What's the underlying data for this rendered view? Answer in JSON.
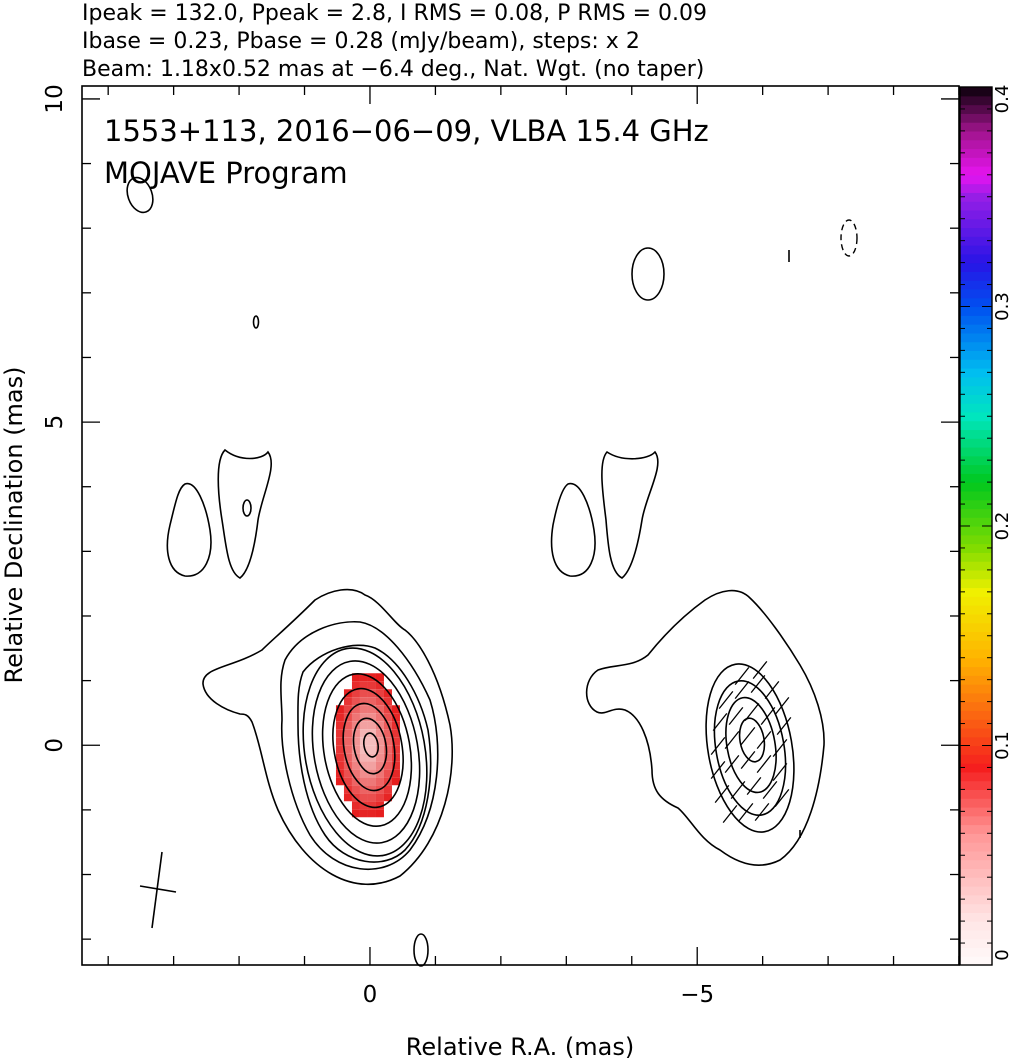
{
  "header": {
    "line1": "Ipeak = 132.0, Ppeak = 2.8, I RMS = 0.08, P RMS = 0.09",
    "line2": "Ibase = 0.23, Pbase = 0.28 (mJy/beam), steps: x 2",
    "line3": "Beam: 1.18x0.52 mas at −6.4 deg., Nat. Wgt. (no taper)"
  },
  "chart_data": {
    "type": "heatmap",
    "title": "1553+113, 2016−06−09, VLBA 15.4 GHz",
    "subtitle": "MOJAVE Program",
    "xlabel": "Relative R.A. (mas)",
    "ylabel": "Relative Declination (mas)",
    "xlim": [
      4.4,
      -9.0
    ],
    "ylim": [
      -3.4,
      10.2
    ],
    "x_ticks": [
      "0",
      "−5"
    ],
    "y_ticks": [
      "0",
      "5",
      "10"
    ],
    "x_tick_values": [
      0,
      -5
    ],
    "y_tick_values": [
      0,
      5,
      10
    ],
    "colorbar": {
      "min": 0,
      "max": 0.4,
      "tick_labels": [
        "0",
        "0.1",
        "0.2",
        "0.3",
        "0.4"
      ],
      "tick_values": [
        0,
        0.1,
        0.2,
        0.3,
        0.4
      ]
    },
    "panels": [
      {
        "name": "total intensity with polarized intensity color",
        "center_ra": 0,
        "center_dec": 0
      },
      {
        "name": "fractional polarization with EVPA sticks",
        "center_ra": -5.8,
        "center_dec": 0.2
      }
    ],
    "contour_base_mJy_per_beam": 0.23,
    "contour_step_factor": 2,
    "peak_intensity_mJy_per_beam": 132.0,
    "colors": {
      "polarization_high": "#e81e1e",
      "polarization_low": "#ff9a9a"
    }
  }
}
